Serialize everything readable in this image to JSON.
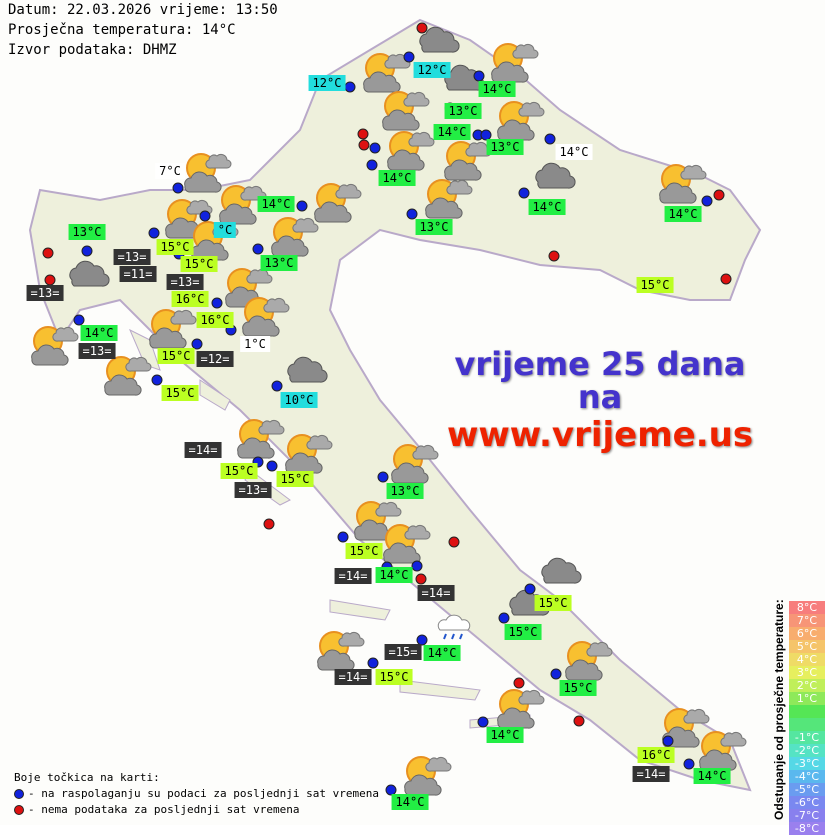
{
  "header": {
    "date_line": "Datum: 22.03.2026 vrijeme: 13:50",
    "avg_temp_line": "Prosječna temperatura: 14°C",
    "source_line": "Izvor podataka: DHMZ"
  },
  "ad": {
    "line1": "vrijeme 25 dana",
    "line2": "na",
    "line3": "www.vrijeme.us"
  },
  "stations": [
    {
      "label": "12°C",
      "style": "cyan"
    },
    {
      "label": "12°C",
      "style": "cyan"
    },
    {
      "label": "14°C",
      "style": "green"
    },
    {
      "label": "13°C",
      "style": "green"
    },
    {
      "label": "14°C",
      "style": "green"
    },
    {
      "label": "13°C",
      "style": "green"
    },
    {
      "label": "14°C",
      "style": "plain"
    },
    {
      "label": "14°C",
      "style": "green"
    },
    {
      "label": "7°C",
      "style": "plain"
    },
    {
      "label": "14°C",
      "style": "green"
    },
    {
      "label": "14°C",
      "style": "green"
    },
    {
      "label": "14°C",
      "style": "green"
    },
    {
      "label": "13°C",
      "style": "green"
    },
    {
      "label": "13°C",
      "style": "green"
    },
    {
      "label": "15°C",
      "style": "lime"
    },
    {
      "label": "°C",
      "style": "cyan"
    },
    {
      "label": "=13=",
      "style": "dark"
    },
    {
      "label": "15°C",
      "style": "lime"
    },
    {
      "label": "=11=",
      "style": "dark"
    },
    {
      "label": "16°C",
      "style": "lime"
    },
    {
      "label": "=13=",
      "style": "dark"
    },
    {
      "label": "13°C",
      "style": "green"
    },
    {
      "label": "=13=",
      "style": "dark"
    },
    {
      "label": "15°C",
      "style": "lime"
    },
    {
      "label": "16°C",
      "style": "lime"
    },
    {
      "label": "14°C",
      "style": "green"
    },
    {
      "label": "1°C",
      "style": "plain"
    },
    {
      "label": "=13=",
      "style": "dark"
    },
    {
      "label": "15°C",
      "style": "lime"
    },
    {
      "label": "=12=",
      "style": "dark"
    },
    {
      "label": "15°C",
      "style": "lime"
    },
    {
      "label": "10°C",
      "style": "cyan"
    },
    {
      "label": "=14=",
      "style": "dark"
    },
    {
      "label": "15°C",
      "style": "lime"
    },
    {
      "label": "15°C",
      "style": "lime"
    },
    {
      "label": "=13=",
      "style": "dark"
    },
    {
      "label": "13°C",
      "style": "green"
    },
    {
      "label": "15°C",
      "style": "lime"
    },
    {
      "label": "=14=",
      "style": "dark"
    },
    {
      "label": "14°C",
      "style": "green"
    },
    {
      "label": "=14=",
      "style": "dark"
    },
    {
      "label": "15°C",
      "style": "lime"
    },
    {
      "label": "15°C",
      "style": "green"
    },
    {
      "label": "=15=",
      "style": "dark"
    },
    {
      "label": "14°C",
      "style": "green"
    },
    {
      "label": "=14=",
      "style": "dark"
    },
    {
      "label": "15°C",
      "style": "lime"
    },
    {
      "label": "15°C",
      "style": "green"
    },
    {
      "label": "14°C",
      "style": "green"
    },
    {
      "label": "16°C",
      "style": "lime"
    },
    {
      "label": "=14=",
      "style": "dark"
    },
    {
      "label": "14°C",
      "style": "green"
    },
    {
      "label": "14°C",
      "style": "green"
    }
  ],
  "legend": {
    "title": "Boje točkica na karti:",
    "blue_text": "- na raspolaganju su podaci za posljednji sat vremena",
    "red_text": "- nema podataka za posljednji sat vremena",
    "blue_color": "#1122dd",
    "red_color": "#dd1111"
  },
  "scale": {
    "title": "Odstupanje od prosječne temperature:",
    "steps": [
      {
        "label": "8°C",
        "color": "#f77d7d"
      },
      {
        "label": "7°C",
        "color": "#f79577"
      },
      {
        "label": "6°C",
        "color": "#f8ad6e"
      },
      {
        "label": "5°C",
        "color": "#f5c46a"
      },
      {
        "label": "4°C",
        "color": "#efdb66"
      },
      {
        "label": "3°C",
        "color": "#e6ef5e"
      },
      {
        "label": "2°C",
        "color": "#c0ef5a"
      },
      {
        "label": "1°C",
        "color": "#8ee95a"
      },
      {
        "label": "",
        "color": "#55e655"
      },
      {
        "label": "",
        "color": "#55e67a"
      },
      {
        "label": "-1°C",
        "color": "#55e6a0"
      },
      {
        "label": "-2°C",
        "color": "#55e3c4"
      },
      {
        "label": "-3°C",
        "color": "#55d8e6"
      },
      {
        "label": "-4°C",
        "color": "#5ab8ee"
      },
      {
        "label": "-5°C",
        "color": "#6a9cf0"
      },
      {
        "label": "-6°C",
        "color": "#7a88f0"
      },
      {
        "label": "-7°C",
        "color": "#8880ee"
      },
      {
        "label": "-8°C",
        "color": "#9a80ee"
      }
    ]
  }
}
